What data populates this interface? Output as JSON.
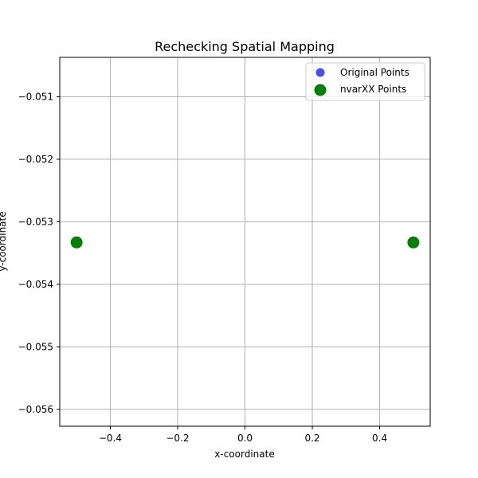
{
  "chart_data": {
    "type": "scatter",
    "title": "Rechecking Spatial Mapping",
    "xlabel": "x-coordinate",
    "ylabel": "y-coordinate",
    "xlim": [
      -0.55,
      0.55
    ],
    "ylim": [
      -0.05627,
      -0.05037
    ],
    "xticks": [
      -0.4,
      -0.2,
      0.0,
      0.2,
      0.4
    ],
    "xtick_labels": [
      "−0.4",
      "−0.2",
      "0.0",
      "0.2",
      "0.4"
    ],
    "yticks": [
      -0.051,
      -0.052,
      -0.053,
      -0.054,
      -0.055,
      -0.056
    ],
    "ytick_labels": [
      "−0.051",
      "−0.052",
      "−0.053",
      "−0.054",
      "−0.055",
      "−0.056"
    ],
    "grid": true,
    "legend_position": "top-right",
    "series": [
      {
        "name": "Original Points",
        "color": "#0000ff",
        "x": [
          -0.5,
          0.5
        ],
        "y": [
          -0.05333,
          -0.05333
        ]
      },
      {
        "name": "nvarXX Points",
        "color": "#008000",
        "x": [
          -0.5,
          0.5
        ],
        "y": [
          -0.05333,
          -0.05333
        ]
      }
    ]
  }
}
